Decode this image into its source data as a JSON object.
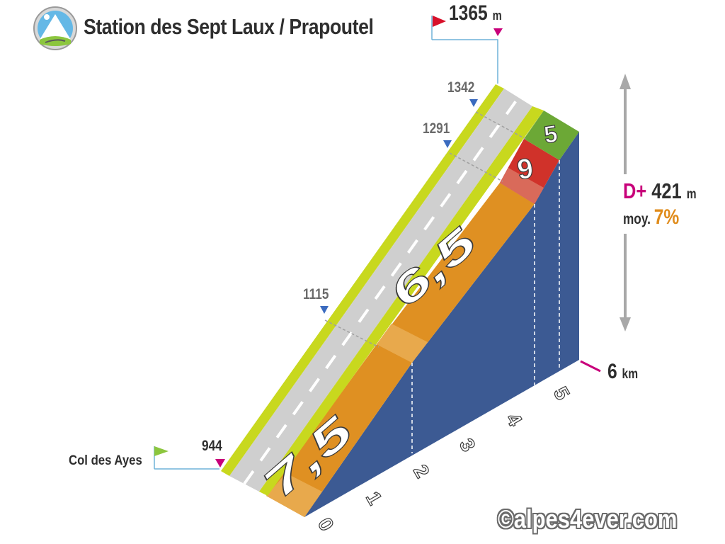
{
  "header": {
    "title": "Station des Sept Laux / Prapoutel",
    "summit_alt": "1365",
    "summit_unit": "m",
    "logo_icon": "mountain-road-icon"
  },
  "start": {
    "label": "Col des Ayes",
    "alt": "944"
  },
  "stats": {
    "dplus_label": "D+",
    "dplus_value": "421",
    "dplus_unit": "m",
    "avg_label": "moy.",
    "avg_value": "7%",
    "distance": "6",
    "distance_unit": "km"
  },
  "elevations": [
    "1115",
    "1291",
    "1342"
  ],
  "km_ticks": [
    "0",
    "1",
    "2",
    "3",
    "4",
    "5"
  ],
  "segments": [
    {
      "from_km": 0,
      "to_km": 2,
      "gradient": "7,5",
      "color": "#e09426"
    },
    {
      "from_km": 2,
      "to_km": 4.5,
      "gradient": "6,5",
      "color": "#e09426"
    },
    {
      "from_km": 4.5,
      "to_km": 5.5,
      "gradient": "9",
      "color": "#d0322a"
    },
    {
      "from_km": 5.5,
      "to_km": 6,
      "gradient": "5",
      "color": "#6ca836"
    }
  ],
  "colors": {
    "side_wall": "#3c5a93",
    "road": "#cfcfcf",
    "verge": "#c8d81e",
    "flag_start": "#8cc63e",
    "flag_summit": "#d8102a",
    "marker": "#c8007a",
    "elev_marker": "#3b6bbf"
  },
  "copyright": "©alpes4ever.com"
}
